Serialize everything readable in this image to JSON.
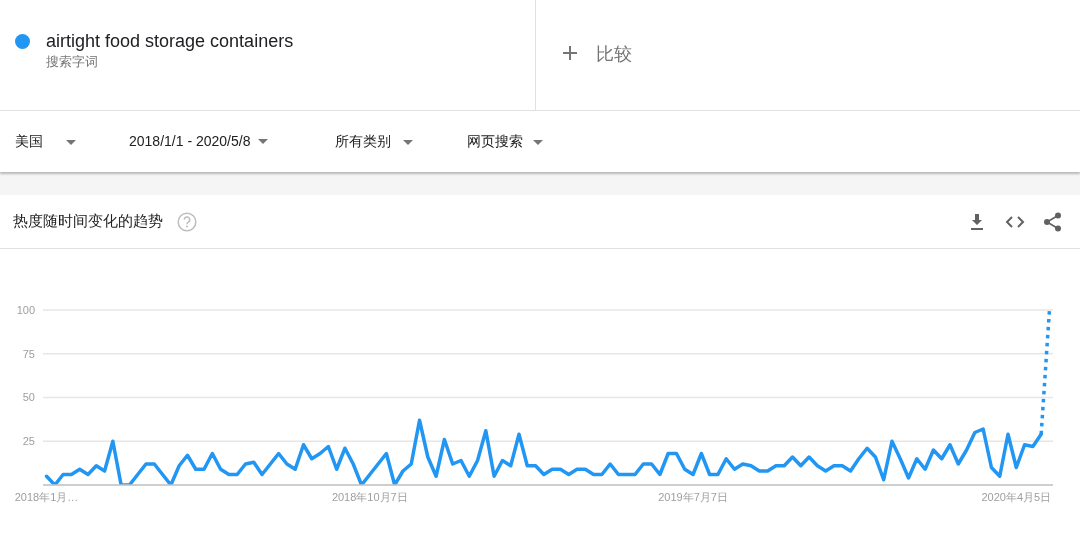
{
  "chart_data": {
    "type": "line",
    "title": "热度随时间变化的趋势",
    "annotations": [
      "搜索字词",
      "比较",
      "美国",
      "2018/1/1 - 2020/5/8",
      "所有类别",
      "网页搜索"
    ],
    "legend": "top left",
    "grid": "y",
    "x": [
      "2018-01-07",
      "2018-01-14",
      "2018-01-21",
      "2018-01-28",
      "2018-02-04",
      "2018-02-11",
      "2018-02-18",
      "2018-02-25",
      "2018-03-04",
      "2018-03-11",
      "2018-03-18",
      "2018-03-25",
      "2018-04-01",
      "2018-04-08",
      "2018-04-15",
      "2018-04-22",
      "2018-04-29",
      "2018-05-06",
      "2018-05-13",
      "2018-05-20",
      "2018-05-27",
      "2018-06-03",
      "2018-06-10",
      "2018-06-17",
      "2018-06-24",
      "2018-07-01",
      "2018-07-08",
      "2018-07-15",
      "2018-07-22",
      "2018-07-29",
      "2018-08-05",
      "2018-08-12",
      "2018-08-19",
      "2018-08-26",
      "2018-09-02",
      "2018-09-09",
      "2018-09-16",
      "2018-09-23",
      "2018-09-30",
      "2018-10-07",
      "2018-10-14",
      "2018-10-21",
      "2018-10-28",
      "2018-11-04",
      "2018-11-11",
      "2018-11-18",
      "2018-11-25",
      "2018-12-02",
      "2018-12-09",
      "2018-12-16",
      "2018-12-23",
      "2018-12-30",
      "2019-01-06",
      "2019-01-13",
      "2019-01-20",
      "2019-01-27",
      "2019-02-03",
      "2019-02-10",
      "2019-02-17",
      "2019-02-24",
      "2019-03-03",
      "2019-03-10",
      "2019-03-17",
      "2019-03-24",
      "2019-03-31",
      "2019-04-07",
      "2019-04-14",
      "2019-04-21",
      "2019-04-28",
      "2019-05-05",
      "2019-05-12",
      "2019-05-19",
      "2019-05-26",
      "2019-06-02",
      "2019-06-09",
      "2019-06-16",
      "2019-06-23",
      "2019-06-30",
      "2019-07-07",
      "2019-07-14",
      "2019-07-21",
      "2019-07-28",
      "2019-08-04",
      "2019-08-11",
      "2019-08-18",
      "2019-08-25",
      "2019-09-01",
      "2019-09-08",
      "2019-09-15",
      "2019-09-22",
      "2019-09-29",
      "2019-10-06",
      "2019-10-13",
      "2019-10-20",
      "2019-10-27",
      "2019-11-03",
      "2019-11-10",
      "2019-11-17",
      "2019-11-24",
      "2019-12-01",
      "2019-12-08",
      "2019-12-15",
      "2019-12-22",
      "2019-12-29",
      "2020-01-05",
      "2020-01-12",
      "2020-01-19",
      "2020-01-26",
      "2020-02-02",
      "2020-02-09",
      "2020-02-16",
      "2020-02-23",
      "2020-03-01",
      "2020-03-08",
      "2020-03-15",
      "2020-03-22",
      "2020-03-29",
      "2020-04-05",
      "2020-04-12",
      "2020-04-19",
      "2020-04-26",
      "2020-05-03"
    ],
    "xlim": [
      "2018-01-04",
      "2020-05-06"
    ],
    "xticks": [
      {
        "value": "2018-01-07",
        "label": "2018年1月…"
      },
      {
        "value": "2018-10-07",
        "label": "2018年10月7日"
      },
      {
        "value": "2019-07-07",
        "label": "2019年7月7日"
      },
      {
        "value": "2020-04-05",
        "label": "2020年4月5日"
      }
    ],
    "ylim": [
      0,
      100
    ],
    "yticks": [
      25,
      50,
      75,
      100
    ],
    "series": [
      {
        "name": "airtight food storage containers",
        "color": "#2196f3",
        "values": [
          5,
          0,
          6,
          6,
          9,
          6,
          11,
          8,
          25,
          0,
          0,
          6,
          12,
          12,
          6,
          0,
          11,
          17,
          9,
          9,
          18,
          9,
          6,
          6,
          12,
          13,
          6,
          12,
          18,
          12,
          9,
          23,
          15,
          18,
          22,
          9,
          21,
          12,
          0,
          6,
          12,
          18,
          0,
          8,
          12,
          37,
          16,
          5,
          26,
          12,
          14,
          5,
          14,
          31,
          5,
          14,
          11,
          29,
          11,
          11,
          6,
          9,
          9,
          6,
          9,
          9,
          6,
          6,
          12,
          6,
          6,
          6,
          12,
          12,
          6,
          18,
          18,
          9,
          6,
          18,
          6,
          6,
          15,
          9,
          12,
          11,
          8,
          8,
          11,
          11,
          16,
          11,
          16,
          11,
          8,
          11,
          11,
          8,
          15,
          21,
          16,
          3,
          25,
          15,
          4,
          15,
          9,
          20,
          15,
          23,
          12,
          20,
          30,
          32,
          10,
          5,
          29,
          10,
          23,
          22,
          29,
          null
        ]
      },
      {
        "color": "#2196f3",
        "line_style": "dotted",
        "values": [
          null,
          null,
          null,
          null,
          null,
          null,
          null,
          null,
          null,
          null,
          null,
          null,
          null,
          null,
          null,
          null,
          null,
          null,
          null,
          null,
          null,
          null,
          null,
          null,
          null,
          null,
          null,
          null,
          null,
          null,
          null,
          null,
          null,
          null,
          null,
          null,
          null,
          null,
          null,
          null,
          null,
          null,
          null,
          null,
          null,
          null,
          null,
          null,
          null,
          null,
          null,
          null,
          null,
          null,
          null,
          null,
          null,
          null,
          null,
          null,
          null,
          null,
          null,
          null,
          null,
          null,
          null,
          null,
          null,
          null,
          null,
          null,
          null,
          null,
          null,
          null,
          null,
          null,
          null,
          null,
          null,
          null,
          null,
          null,
          null,
          null,
          null,
          null,
          null,
          null,
          null,
          null,
          null,
          null,
          null,
          null,
          null,
          null,
          null,
          null,
          null,
          null,
          null,
          null,
          null,
          null,
          null,
          null,
          null,
          null,
          null,
          null,
          null,
          null,
          null,
          null,
          null,
          null,
          null,
          null,
          29,
          100
        ]
      }
    ]
  }
}
